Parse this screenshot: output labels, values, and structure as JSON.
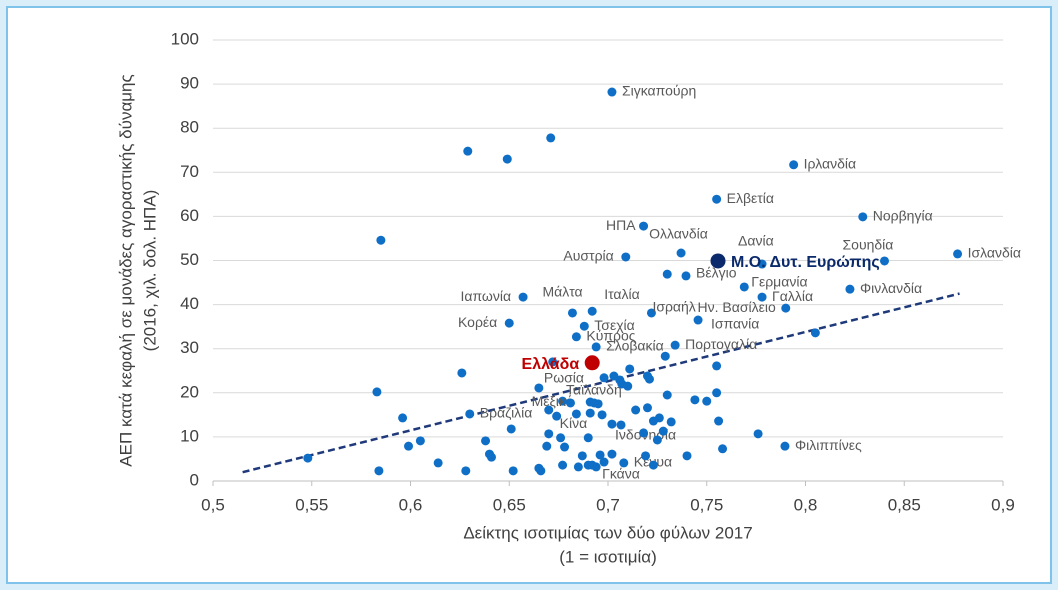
{
  "chart_data": {
    "type": "scatter",
    "x_label": [
      "Δείκτης ισοτιμίας των δύο φύλων 2017",
      "(1 = ισοτιμία)"
    ],
    "y_label": [
      "ΑΕΠ κατά κεφαλή σε μονάδες αγοραστικής δύναμης",
      "(2016, χιλ. δολ. ΗΠΑ)"
    ],
    "xlim": [
      0.5,
      0.9
    ],
    "xticks": [
      {
        "value": 0.5,
        "label": "0,5"
      },
      {
        "value": 0.55,
        "label": "0,55"
      },
      {
        "value": 0.6,
        "label": "0,6"
      },
      {
        "value": 0.65,
        "label": "0,65"
      },
      {
        "value": 0.7,
        "label": "0,7"
      },
      {
        "value": 0.75,
        "label": "0,75"
      },
      {
        "value": 0.8,
        "label": "0,8"
      },
      {
        "value": 0.85,
        "label": "0,85"
      },
      {
        "value": 0.9,
        "label": "0,9"
      }
    ],
    "ylim": [
      0,
      100
    ],
    "yticks": [
      0,
      10,
      20,
      30,
      40,
      50,
      60,
      70,
      80,
      90,
      100
    ],
    "grid": true,
    "color": "#0f6fc6",
    "x": [
      0.702,
      0.794,
      0.755,
      0.829,
      0.718,
      0.737,
      0.778,
      0.709,
      0.84,
      0.877,
      0.7395,
      0.769,
      0.778,
      0.8225,
      0.657,
      0.682,
      0.692,
      0.722,
      0.79,
      0.7456,
      0.65,
      0.688,
      0.684,
      0.734,
      0.694,
      0.665,
      0.698,
      0.677,
      0.63,
      0.674,
      0.7066,
      0.7896,
      0.708,
      0.694,
      0.548,
      0.584,
      0.583,
      0.585,
      0.629,
      0.649,
      0.671,
      0.596,
      0.599,
      0.605,
      0.614,
      0.628,
      0.626,
      0.638,
      0.64,
      0.641,
      0.651,
      0.652,
      0.666,
      0.665,
      0.669,
      0.67,
      0.67,
      0.672,
      0.676,
      0.677,
      0.678,
      0.681,
      0.684,
      0.685,
      0.687,
      0.69,
      0.69,
      0.691,
      0.692,
      0.693,
      0.695,
      0.696,
      0.697,
      0.698,
      0.702,
      0.702,
      0.703,
      0.706,
      0.707,
      0.71,
      0.711,
      0.714,
      0.718,
      0.719,
      0.72,
      0.721,
      0.723,
      0.725,
      0.726,
      0.728,
      0.73,
      0.732,
      0.74,
      0.744,
      0.75,
      0.755,
      0.755,
      0.756,
      0.758,
      0.776,
      0.805,
      0.73,
      0.691,
      0.723,
      0.72,
      0.729
    ],
    "values": [
      88.2,
      71.7,
      63.9,
      59.9,
      57.8,
      51.7,
      49.2,
      50.8,
      49.9,
      51.5,
      46.5,
      44.0,
      41.7,
      43.5,
      41.7,
      38.1,
      38.5,
      38.1,
      39.2,
      36.5,
      35.8,
      35.1,
      32.7,
      30.8,
      30.4,
      21.1,
      23.4,
      18.1,
      15.2,
      14.7,
      12.7,
      7.9,
      4.1,
      3.2,
      5.2,
      2.3,
      20.2,
      54.6,
      74.8,
      73.0,
      77.8,
      14.3,
      7.9,
      9.1,
      4.1,
      2.3,
      24.5,
      9.1,
      6.1,
      5.4,
      11.8,
      2.3,
      2.3,
      2.9,
      7.9,
      10.7,
      16.1,
      27.0,
      9.8,
      3.6,
      7.7,
      17.7,
      15.2,
      3.2,
      5.7,
      9.8,
      3.6,
      15.4,
      3.6,
      17.7,
      17.5,
      5.9,
      15.0,
      4.3,
      12.9,
      6.1,
      23.8,
      22.9,
      22.0,
      21.5,
      25.4,
      16.1,
      10.9,
      5.7,
      16.6,
      23.1,
      13.6,
      9.3,
      14.3,
      11.3,
      19.5,
      13.4,
      5.7,
      18.4,
      18.1,
      20.0,
      26.1,
      13.6,
      7.3,
      10.7,
      33.6,
      46.9,
      17.9,
      3.6,
      23.8,
      28.3
    ],
    "point_labels": [
      "Σιγκαπούρη",
      "Ιρλανδία",
      "Ελβετία",
      "Νορβηγία",
      "ΗΠΑ",
      "Ολλανδία",
      "Δανία",
      "Αυστρία",
      "Σουηδία",
      "Ισλανδία",
      "Βέλγιο",
      "Γερμανία",
      "Γαλλία",
      "Φινλανδία",
      "Ιαπωνία",
      "Μάλτα",
      "Ιταλία",
      "Ισραήλ",
      "Ην. Βασίλειο",
      "Ισπανία",
      "Κορέα",
      "Τσεχία",
      "Κύπρος",
      "Πορτογαλία",
      "Σλοβακία",
      "Ρωσία",
      "Ταϊλάνδη",
      "Μεξικό",
      "Βραζιλία",
      "Κίνα",
      "Ινδονησία",
      "Φιλιππίνες",
      "Κένυα",
      "Γκάνα",
      null,
      null,
      null,
      null,
      null,
      null,
      null,
      null,
      null,
      null,
      null,
      null,
      null,
      null,
      null,
      null,
      null,
      null,
      null,
      null,
      null,
      null,
      null,
      null,
      null,
      null,
      null,
      null,
      null,
      null,
      null,
      null,
      null,
      null,
      null,
      null,
      null,
      null,
      null,
      null,
      null,
      null,
      null,
      null,
      null,
      null,
      null,
      null,
      null,
      null,
      null,
      null,
      null,
      null,
      null,
      null,
      null,
      null,
      null,
      null,
      null,
      null,
      null,
      null,
      null,
      null,
      null,
      null,
      null,
      null,
      null,
      null
    ],
    "highlights": [
      {
        "label": "Ελλάδα",
        "x": 0.692,
        "y": 26.8,
        "color": "#c00000"
      },
      {
        "label": "Μ.Ο. Δυτ. Ευρώπης",
        "x": 0.7557,
        "y": 49.9,
        "color": "#0b2a6b"
      }
    ],
    "trendline": {
      "x": [
        0.515,
        0.878
      ],
      "y": [
        2.0,
        42.5
      ],
      "color": "#1f3a7a"
    }
  }
}
